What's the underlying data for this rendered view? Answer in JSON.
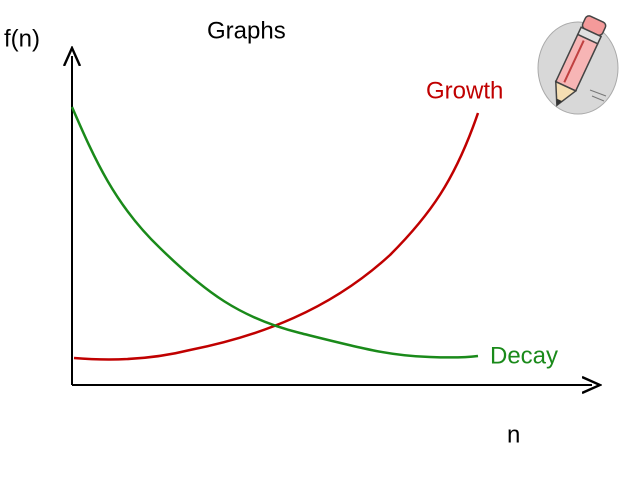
{
  "title": "Graphs",
  "y_axis_label": "f(n)",
  "x_axis_label": "n",
  "curves": [
    {
      "label": "Growth"
    },
    {
      "label": "Decay"
    }
  ]
}
